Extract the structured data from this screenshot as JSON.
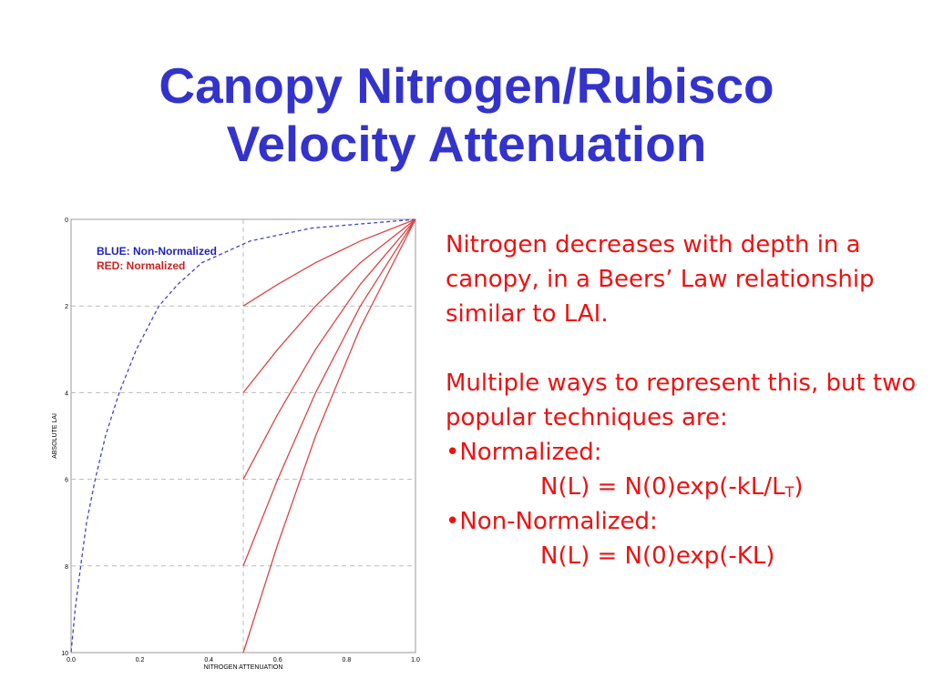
{
  "title": {
    "line1": "Canopy Nitrogen/Rubisco",
    "line2": "Velocity Attenuation"
  },
  "colors": {
    "title": "#3333cc",
    "body_text": "#ee1111",
    "non_normalized": "#4444cc",
    "normalized": "#dd4444",
    "grid": "#bbbbbb"
  },
  "body": {
    "para1": "Nitrogen decreases with depth in a canopy, in a Beers’ Law relationship similar to LAI.",
    "para2": "Multiple ways to represent this, but two popular techniques are:",
    "bullet1": "•Normalized:",
    "formula1_main": "N(L) = N(0)exp(-kL/L",
    "formula1_sub": "T",
    "formula1_end": ")",
    "bullet2": "•Non-Normalized:",
    "formula2": "N(L) = N(0)exp(-KL)"
  },
  "chart_data": {
    "type": "line",
    "xlabel": "NITROGEN ATTENUATION",
    "ylabel": "ABSOLUTE LAI",
    "xlim": [
      0.0,
      1.0
    ],
    "ylim": [
      0,
      10
    ],
    "y_inverted": true,
    "x_ticks": [
      "0.0",
      "0.2",
      "0.4",
      "0.6",
      "0.8",
      "1.0"
    ],
    "y_ticks": [
      "0",
      "2",
      "4",
      "6",
      "8",
      "10"
    ],
    "grid": "dashed at x=0.5 and y=2,4,6,8",
    "legend": {
      "placement": "top-left",
      "entries": [
        {
          "label": "BLUE: Non-Normalized",
          "color": "#2222bb"
        },
        {
          "label": "RED: Normalized",
          "color": "#cc2222"
        }
      ]
    },
    "series": [
      {
        "name": "BLUE: Non-Normalized",
        "style": "dashed",
        "lai": [
          0,
          0.2,
          0.5,
          1,
          1.5,
          2,
          3,
          4,
          5,
          6,
          7,
          8,
          9,
          10
        ],
        "attenuation": [
          1.0,
          0.7,
          0.52,
          0.38,
          0.31,
          0.255,
          0.19,
          0.14,
          0.1,
          0.07,
          0.045,
          0.028,
          0.012,
          0.0
        ]
      },
      {
        "name": "RED: Normalized",
        "style": "solid",
        "curves": [
          {
            "lai_total": 2,
            "lai": [
              0,
              0.5,
              1,
              1.5,
              2
            ],
            "attenuation": [
              1.0,
              0.84,
              0.71,
              0.6,
              0.5
            ]
          },
          {
            "lai_total": 4,
            "lai": [
              0,
              1,
              2,
              3,
              4
            ],
            "attenuation": [
              1.0,
              0.84,
              0.71,
              0.6,
              0.5
            ]
          },
          {
            "lai_total": 6,
            "lai": [
              0,
              1.5,
              3,
              4.5,
              6
            ],
            "attenuation": [
              1.0,
              0.84,
              0.71,
              0.6,
              0.5
            ]
          },
          {
            "lai_total": 8,
            "lai": [
              0,
              2,
              4,
              6,
              8
            ],
            "attenuation": [
              1.0,
              0.84,
              0.71,
              0.6,
              0.5
            ]
          },
          {
            "lai_total": 10,
            "lai": [
              0,
              2.5,
              5,
              7.5,
              10
            ],
            "attenuation": [
              1.0,
              0.84,
              0.71,
              0.6,
              0.5
            ]
          }
        ]
      }
    ]
  }
}
